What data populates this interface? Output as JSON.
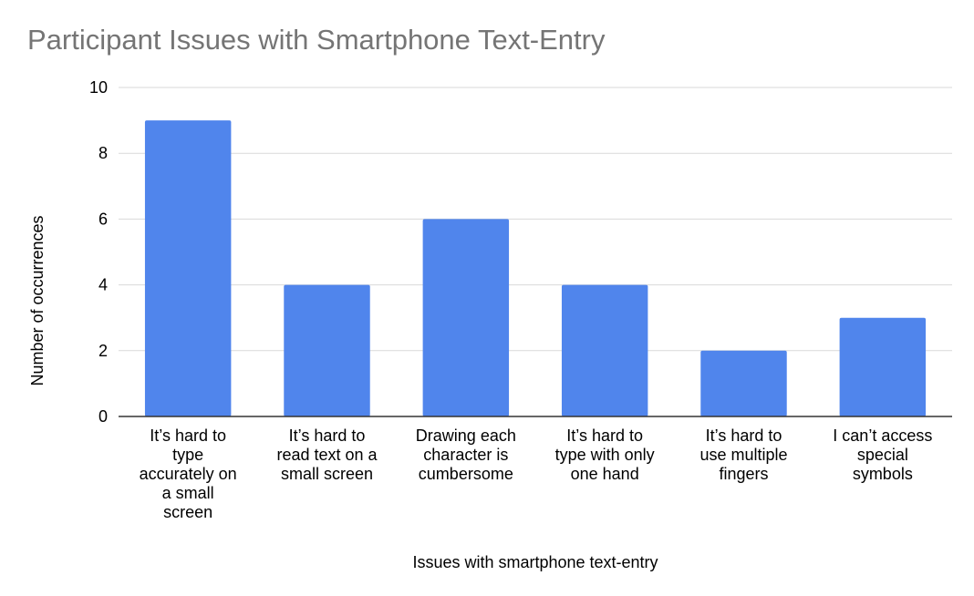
{
  "chart_data": {
    "type": "bar",
    "title": "Participant Issues with Smartphone Text-Entry",
    "xlabel": "Issues with smartphone text-entry",
    "ylabel": "Number of occurrences",
    "categories": [
      "It’s hard to type accurately on a small screen",
      "It’s hard to read text on a small screen",
      "Drawing each character is cumbersome",
      "It’s hard to type with only one hand",
      "It’s hard to use multiple fingers",
      "I can’t access special symbols"
    ],
    "category_lines": [
      [
        "It’s hard to",
        "type",
        "accurately on",
        "a small",
        "screen"
      ],
      [
        "It’s hard to",
        "read text on a",
        "small screen"
      ],
      [
        "Drawing each",
        "character is",
        "cumbersome"
      ],
      [
        "It’s hard to",
        "type with only",
        "one hand"
      ],
      [
        "It’s hard to",
        "use multiple",
        "fingers"
      ],
      [
        "I can’t access",
        "special",
        "symbols"
      ]
    ],
    "series": [
      {
        "values": [
          9,
          4,
          6,
          4,
          2,
          3
        ]
      }
    ],
    "ylim": [
      0,
      10
    ],
    "yticks": [
      "0",
      "2",
      "4",
      "6",
      "8",
      "10"
    ],
    "grid": true,
    "legend": "none",
    "colors": {
      "bar": "#5085ec",
      "grid": "#d9d9d9",
      "axis": "#333333",
      "title": "#757575"
    }
  }
}
